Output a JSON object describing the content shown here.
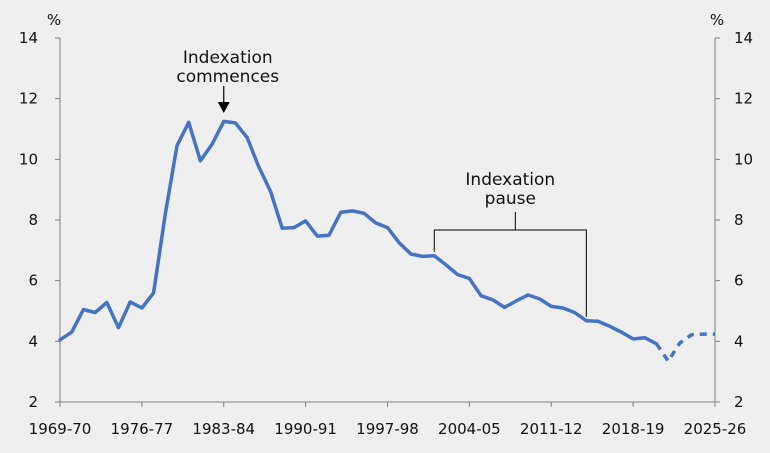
{
  "chart_data": {
    "type": "line",
    "y_unit_left": "%",
    "y_unit_right": "%",
    "ylim": [
      2,
      14
    ],
    "y_ticks": [
      2,
      4,
      6,
      8,
      10,
      12,
      14
    ],
    "grid": false,
    "legend": "none",
    "x_tick_labels": [
      "1969-70",
      "1976-77",
      "1983-84",
      "1990-91",
      "1997-98",
      "2004-05",
      "2011-12",
      "2018-19",
      "2025-26"
    ],
    "x_start_year": 1969,
    "x_end_year": 2025,
    "colors": {
      "line": "#4472c4",
      "axis": "#7f7f7f",
      "annotation": "#000000"
    },
    "series": [
      {
        "style": "solid",
        "x": [
          "1969-70",
          "1970-71",
          "1971-72",
          "1972-73",
          "1973-74",
          "1974-75",
          "1975-76",
          "1976-77",
          "1977-78",
          "1978-79",
          "1979-80",
          "1980-81",
          "1981-82",
          "1982-83",
          "1983-84",
          "1984-85",
          "1985-86",
          "1986-87",
          "1987-88",
          "1988-89",
          "1989-90",
          "1990-91",
          "1991-92",
          "1992-93",
          "1993-94",
          "1994-95",
          "1995-96",
          "1996-97",
          "1997-98",
          "1998-99",
          "1999-00",
          "2000-01",
          "2001-02",
          "2002-03",
          "2003-04",
          "2004-05",
          "2005-06",
          "2006-07",
          "2007-08",
          "2008-09",
          "2009-10",
          "2010-11",
          "2011-12",
          "2012-13",
          "2013-14",
          "2014-15",
          "2015-16",
          "2016-17",
          "2017-18",
          "2018-19",
          "2019-20",
          "2020-21"
        ],
        "y": [
          4.05,
          4.3,
          5.05,
          4.95,
          5.28,
          4.45,
          5.3,
          5.1,
          5.6,
          8.2,
          10.45,
          11.22,
          9.95,
          10.5,
          11.25,
          11.2,
          10.72,
          9.75,
          8.95,
          7.73,
          7.75,
          7.97,
          7.47,
          7.5,
          8.25,
          8.3,
          8.22,
          7.9,
          7.75,
          7.25,
          6.88,
          6.8,
          6.82,
          6.52,
          6.2,
          6.07,
          5.5,
          5.37,
          5.12,
          5.33,
          5.53,
          5.4,
          5.15,
          5.1,
          4.95,
          4.68,
          4.66,
          4.5,
          4.3,
          4.08,
          4.12,
          3.92
        ]
      },
      {
        "style": "dashed",
        "x": [
          "2020-21",
          "2021-22",
          "2022-23",
          "2023-24",
          "2024-25",
          "2025-26"
        ],
        "y": [
          3.92,
          3.35,
          3.95,
          4.22,
          4.24,
          4.24
        ]
      }
    ],
    "annotations": [
      {
        "text_lines": [
          "Indexation",
          "commences"
        ],
        "target_x": "1983-84",
        "target_y": 11.25
      },
      {
        "text_lines": [
          "Indexation",
          "pause"
        ],
        "range_x": [
          "2001-02",
          "2014-15"
        ]
      }
    ]
  }
}
